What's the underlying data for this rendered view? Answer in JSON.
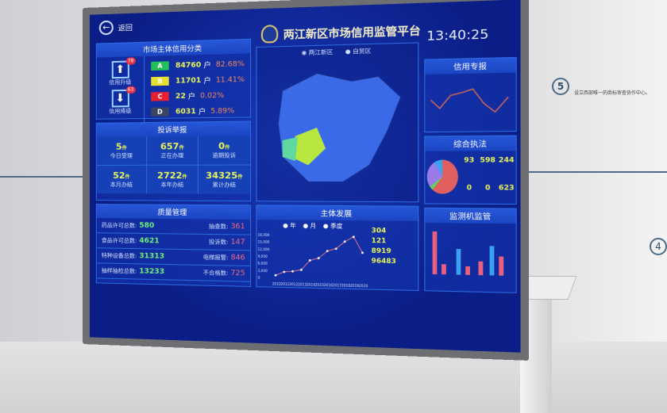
{
  "header": {
    "back_label": "返回",
    "title": "两江新区市场信用监管平台",
    "time": "13:40:25"
  },
  "credit": {
    "title": "市场主体信用分类",
    "upgrade_label": "信用升级",
    "upgrade_badge": "78",
    "downgrade_label": "信用降级",
    "downgrade_badge": "63",
    "grades": [
      {
        "grade": "A",
        "count": "84760",
        "unit": "户",
        "pct": "82.68%",
        "color": "#22c05a"
      },
      {
        "grade": "B",
        "count": "11701",
        "unit": "户",
        "pct": "11.41%",
        "color": "#e8e030"
      },
      {
        "grade": "C",
        "count": "22",
        "unit": "户",
        "pct": "0.02%",
        "color": "#e82030"
      },
      {
        "grade": "D",
        "count": "6031",
        "unit": "户",
        "pct": "5.89%",
        "color": "#3a4660"
      }
    ]
  },
  "complaints": {
    "title": "投诉举报",
    "unit": "件",
    "items": [
      {
        "value": "5",
        "label": "今日受理"
      },
      {
        "value": "657",
        "label": "正在办理"
      },
      {
        "value": "0",
        "label": "逾期投诉"
      },
      {
        "value": "52",
        "label": "本月办结"
      },
      {
        "value": "2722",
        "label": "本年办结"
      },
      {
        "value": "34325",
        "label": "累计办结"
      }
    ]
  },
  "quality": {
    "title": "质量管理",
    "left": [
      {
        "label": "药品许可总数:",
        "value": "580"
      },
      {
        "label": "食品许可总数:",
        "value": "4621"
      },
      {
        "label": "特种设备总数:",
        "value": "31313"
      },
      {
        "label": "抽样抽检总数:",
        "value": "13233"
      }
    ],
    "right": [
      {
        "label": "抽查数:",
        "value": "361"
      },
      {
        "label": "投诉数:",
        "value": "147"
      },
      {
        "label": "电梯报警:",
        "value": "846"
      },
      {
        "label": "不合格数:",
        "value": "725"
      }
    ]
  },
  "map": {
    "options": [
      "两江新区",
      "自贸区"
    ],
    "selected": "两江新区"
  },
  "development": {
    "title": "主体发展",
    "legend": [
      "年",
      "月",
      "季度"
    ],
    "stats": [
      {
        "value": "304"
      },
      {
        "value": "121"
      },
      {
        "value": "8919"
      },
      {
        "value": "96483"
      }
    ]
  },
  "chart_data": {
    "type": "line",
    "categories": [
      "2010",
      "2011",
      "2012",
      "2013",
      "2014",
      "2015",
      "2016",
      "2017",
      "2018",
      "2019",
      "2020"
    ],
    "values": [
      1000,
      2500,
      2800,
      3500,
      7500,
      8500,
      11500,
      12500,
      15500,
      17500,
      11000
    ],
    "ylim": [
      0,
      18000
    ],
    "yticks": [
      "0",
      "3,000",
      "6,000",
      "9,000",
      "12,000",
      "15,000",
      "18,000"
    ]
  },
  "right": {
    "panel1_title": "信用专报",
    "panel2_title": "综合执法",
    "panel3_title": "监测机监管",
    "enforcement": [
      "93",
      "598",
      "244",
      "0",
      "0",
      "623"
    ]
  },
  "wall": {
    "step": "5",
    "step2": "4",
    "caption": "设立西部唯一的商标审查协作中心。"
  }
}
